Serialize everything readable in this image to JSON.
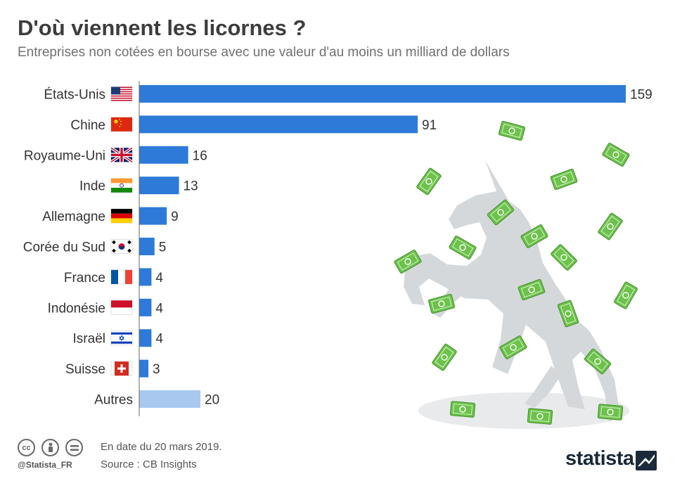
{
  "header": {
    "title": "D'où viennent les licornes ?",
    "subtitle": "Entreprises non cotées en bourse avec une valeur d'au moins un milliard de dollars"
  },
  "chart_data": {
    "type": "bar",
    "orientation": "horizontal",
    "categories": [
      "États-Unis",
      "Chine",
      "Royaume-Uni",
      "Inde",
      "Allemagne",
      "Corée du Sud",
      "France",
      "Indonésie",
      "Israël",
      "Suisse",
      "Autres"
    ],
    "values": [
      159,
      91,
      16,
      13,
      9,
      5,
      4,
      4,
      4,
      3,
      20
    ],
    "data_labels": [
      "159",
      "91",
      "16",
      "13",
      "9",
      "5",
      "4",
      "4",
      "4",
      "3",
      "20"
    ],
    "flags": [
      "us-flag-icon",
      "china-flag-icon",
      "uk-flag-icon",
      "india-flag-icon",
      "germany-flag-icon",
      "south-korea-flag-icon",
      "france-flag-icon",
      "indonesia-flag-icon",
      "israel-flag-icon",
      "switzerland-flag-icon",
      ""
    ],
    "xlim": [
      0,
      159
    ],
    "grid": false,
    "legend": "none",
    "colors": {
      "bar": "#2e7ad8",
      "other_bar": "#a9c8f0",
      "axis": "#666666"
    }
  },
  "footer": {
    "date": "En date du 20 mars 2019.",
    "source": "Source : CB Insights",
    "handle": "@Statista_FR",
    "license_icons": [
      "cc-icon",
      "by-icon",
      "nd-icon"
    ],
    "brand": "statista"
  },
  "illustration": {
    "icons": [
      "unicorn-icon",
      "banknote-icon"
    ],
    "colors": {
      "unicorn": "#d5d8db",
      "banknote": "#6cc24a"
    }
  }
}
